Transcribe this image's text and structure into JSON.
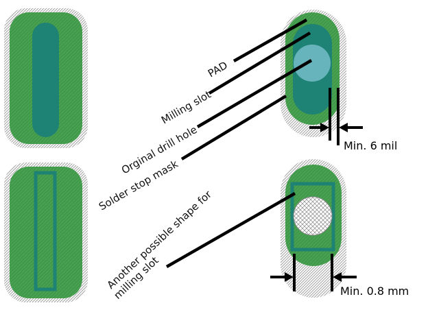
{
  "labels": {
    "pad": "PAD",
    "milling_slot": "Milling slot",
    "original_drill_hole": "Orginal drill hole",
    "solder_stop_mask": "Solder stop mask",
    "another_shape_line1": "Another possible shape for",
    "another_shape_line2": "milling slot",
    "min_6_mil": "Min. 6 mil",
    "min_08_mm": "Min. 0.8 mm"
  },
  "colors": {
    "pad_green": "#3f9a49",
    "slot_teal": "#1e8274",
    "drill_hole": "#67b4bc",
    "mask_hatch": "#9a9a9a",
    "leader_line": "#000000"
  }
}
